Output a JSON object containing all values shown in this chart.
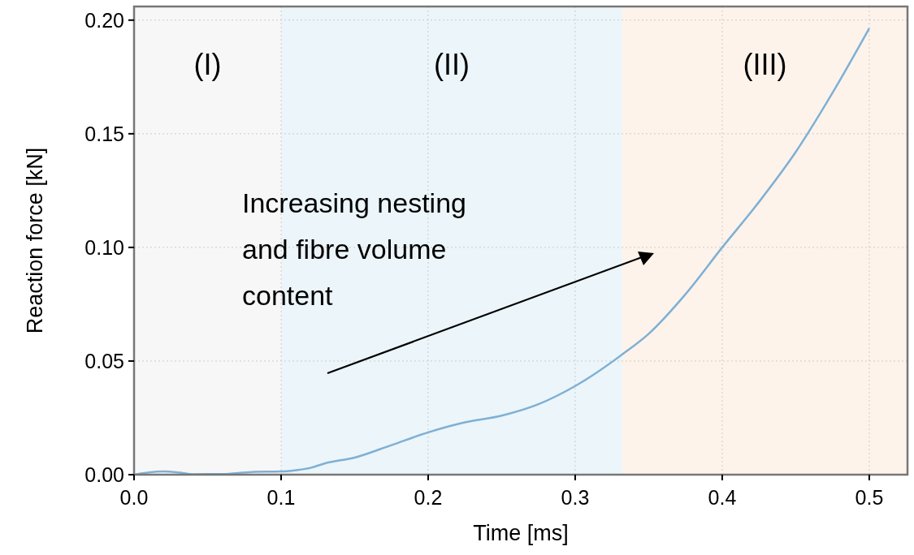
{
  "chart_data": {
    "type": "line",
    "xlabel": "Time [ms]",
    "ylabel": "Reaction force [kN]",
    "x": [
      0,
      0.01,
      0.02,
      0.03,
      0.04,
      0.06,
      0.08,
      0.1,
      0.11,
      0.12,
      0.13,
      0.15,
      0.175,
      0.2,
      0.225,
      0.25,
      0.275,
      0.3,
      0.332,
      0.35,
      0.375,
      0.4,
      0.425,
      0.45,
      0.475,
      0.5
    ],
    "series": [
      {
        "color": "#7eb0d5",
        "values": [
          0,
          0.001,
          0.0014,
          0.001,
          0.0002,
          0.0003,
          0.0012,
          0.0014,
          0.002,
          0.003,
          0.005,
          0.0075,
          0.013,
          0.0186,
          0.023,
          0.026,
          0.031,
          0.039,
          0.0529,
          0.062,
          0.0794,
          0.1,
          0.12,
          0.142,
          0.168,
          0.1964
        ]
      }
    ],
    "xlim": [
      0,
      0.526
    ],
    "ylim": [
      0,
      0.206
    ],
    "xticks": [
      {
        "value": 0,
        "label": "0.0"
      },
      0.1,
      0.2,
      0.3,
      0.4,
      0.5
    ],
    "yticks": [
      {
        "value": 0,
        "label": "0.00"
      },
      0.05,
      {
        "value": 0.1,
        "label": "0.10"
      },
      0.15,
      {
        "value": 0.2,
        "label": "0.20"
      }
    ],
    "grid": true,
    "marker": "none",
    "line_style": "solid",
    "bands": [
      {
        "axis": "x",
        "from": 0,
        "to": 0.1,
        "label": "(I)",
        "color": "#f7f7f7"
      },
      {
        "axis": "x",
        "from": 0.1,
        "to": 0.332,
        "label": "(II)",
        "color": "#ecf5f9"
      },
      {
        "axis": "x",
        "from": 0.332,
        "to": 0.526,
        "label": "(III)",
        "color": "#fdf3eb"
      }
    ],
    "annotations": [
      "Increasing nesting and fibre volume content"
    ]
  }
}
